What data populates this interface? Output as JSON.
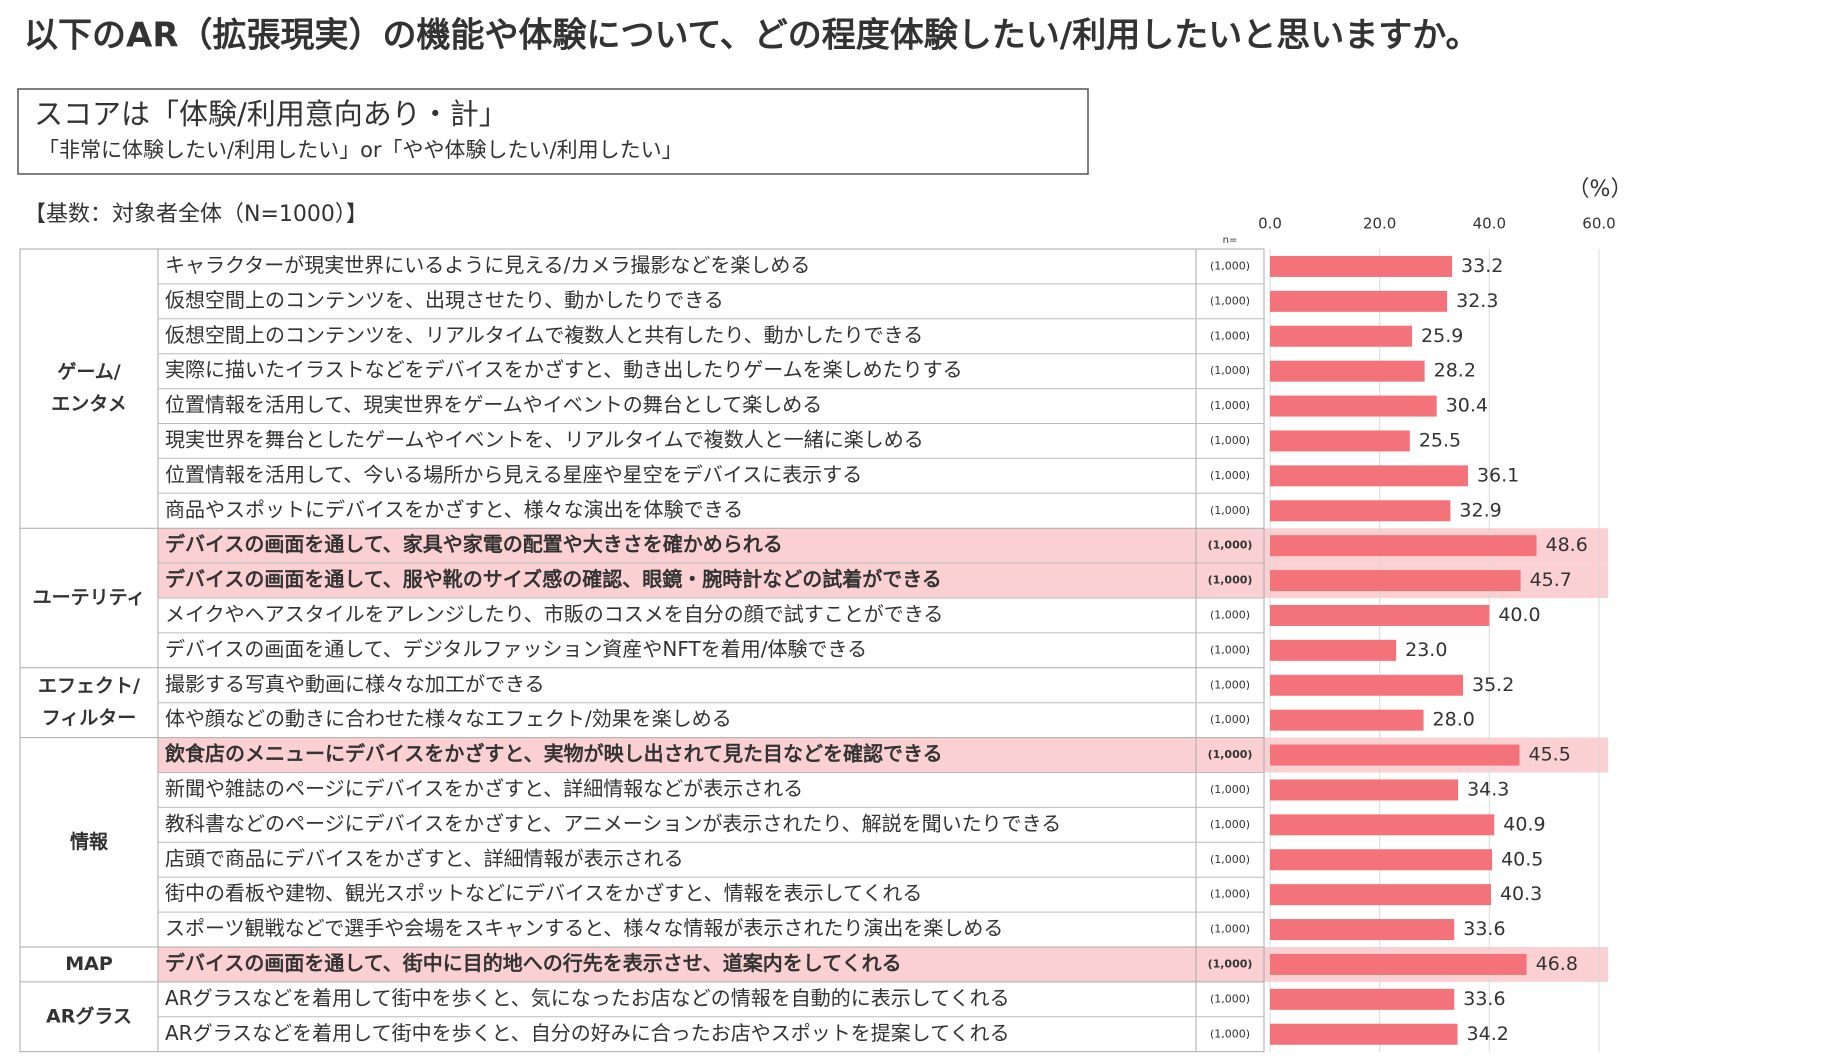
{
  "chart_data": {
    "type": "bar",
    "orientation": "horizontal",
    "title": "以下のAR（拡張現実）の機能や体験について、どの程度体験したい/利用したいと思いますか。",
    "subtitle": "スコアは「体験/利用意向あり・計」",
    "subtitle_note": "「非常に体験したい/利用したい」or「やや体験したい/利用したい」",
    "base_note": "【基数：対象者全体（N=1000）】",
    "unit": "（%）",
    "n_header": "n=",
    "color": "#f4737b",
    "highlight_color": "#fbd0d3",
    "grid": true,
    "xlim": [
      0,
      60
    ],
    "xticks": [
      {
        "value": 0,
        "label": "0.0"
      },
      {
        "value": 20,
        "label": "20.0"
      },
      {
        "value": 40,
        "label": "40.0"
      },
      {
        "value": 60,
        "label": "60.0"
      }
    ],
    "groups": [
      {
        "label": [
          "ゲーム/",
          "エンタメ"
        ],
        "categories": [
          "キャラクターが現実世界にいるように見える/カメラ撮影などを楽しめる",
          "仮想空間上のコンテンツを、出現させたり、動かしたりできる",
          "仮想空間上のコンテンツを、リアルタイムで複数人と共有したり、動かしたりできる",
          "実際に描いたイラストなどをデバイスをかざすと、動き出したりゲームを楽しめたりする",
          "位置情報を活用して、現実世界をゲームやイベントの舞台として楽しめる",
          "現実世界を舞台としたゲームやイベントを、リアルタイムで複数人と一緒に楽しめる",
          "位置情報を活用して、今いる場所から見える星座や星空をデバイスに表示する",
          "商品やスポットにデバイスをかざすと、様々な演出を体験できる"
        ],
        "n_labels": [
          "(1,000)",
          "(1,000)",
          "(1,000)",
          "(1,000)",
          "(1,000)",
          "(1,000)",
          "(1,000)",
          "(1,000)"
        ],
        "values": [
          33.2,
          32.3,
          25.9,
          28.2,
          30.4,
          25.5,
          36.1,
          32.9
        ],
        "value_labels": [
          "33.2",
          "32.3",
          "25.9",
          "28.2",
          "30.4",
          "25.5",
          "36.1",
          "32.9"
        ],
        "highlight": [
          false,
          false,
          false,
          false,
          false,
          false,
          false,
          false
        ]
      },
      {
        "label": [
          "ユーテリティ"
        ],
        "categories": [
          "デバイスの画面を通して、家具や家電の配置や大きさを確かめられる",
          "デバイスの画面を通して、服や靴のサイズ感の確認、眼鏡・腕時計などの試着ができる",
          "メイクやヘアスタイルをアレンジしたり、市販のコスメを自分の顔で試すことができる",
          "デバイスの画面を通して、デジタルファッション資産やNFTを着用/体験できる"
        ],
        "n_labels": [
          "(1,000)",
          "(1,000)",
          "(1,000)",
          "(1,000)"
        ],
        "values": [
          48.6,
          45.7,
          40.0,
          23.0
        ],
        "value_labels": [
          "48.6",
          "45.7",
          "40.0",
          "23.0"
        ],
        "highlight": [
          true,
          true,
          false,
          false
        ]
      },
      {
        "label": [
          "エフェクト/",
          "フィルター"
        ],
        "categories": [
          "撮影する写真や動画に様々な加工ができる",
          "体や顔などの動きに合わせた様々なエフェクト/効果を楽しめる"
        ],
        "n_labels": [
          "(1,000)",
          "(1,000)"
        ],
        "values": [
          35.2,
          28.0
        ],
        "value_labels": [
          "35.2",
          "28.0"
        ],
        "highlight": [
          false,
          false
        ]
      },
      {
        "label": [
          "情報"
        ],
        "categories": [
          "飲食店のメニューにデバイスをかざすと、実物が映し出されて見た目などを確認できる",
          "新聞や雑誌のページにデバイスをかざすと、詳細情報などが表示される",
          "教科書などのページにデバイスをかざすと、アニメーションが表示されたり、解説を聞いたりできる",
          "店頭で商品にデバイスをかざすと、詳細情報が表示される",
          "街中の看板や建物、観光スポットなどにデバイスをかざすと、情報を表示してくれる",
          "スポーツ観戦などで選手や会場をスキャンすると、様々な情報が表示されたり演出を楽しめる"
        ],
        "n_labels": [
          "(1,000)",
          "(1,000)",
          "(1,000)",
          "(1,000)",
          "(1,000)",
          "(1,000)"
        ],
        "values": [
          45.5,
          34.3,
          40.9,
          40.5,
          40.3,
          33.6
        ],
        "value_labels": [
          "45.5",
          "34.3",
          "40.9",
          "40.5",
          "40.3",
          "33.6"
        ],
        "highlight": [
          true,
          false,
          false,
          false,
          false,
          false
        ]
      },
      {
        "label": [
          "MAP"
        ],
        "categories": [
          "デバイスの画面を通して、街中に目的地への行先を表示させ、道案内をしてくれる"
        ],
        "n_labels": [
          "(1,000)"
        ],
        "values": [
          46.8
        ],
        "value_labels": [
          "46.8"
        ],
        "highlight": [
          true
        ]
      },
      {
        "label": [
          "ARグラス"
        ],
        "categories": [
          "ARグラスなどを着用して街中を歩くと、気になったお店などの情報を自動的に表示してくれる",
          "ARグラスなどを着用して街中を歩くと、自分の好みに合ったお店やスポットを提案してくれる"
        ],
        "n_labels": [
          "(1,000)",
          "(1,000)"
        ],
        "values": [
          33.6,
          34.2
        ],
        "value_labels": [
          "33.6",
          "34.2"
        ],
        "highlight": [
          false,
          false
        ]
      }
    ]
  }
}
